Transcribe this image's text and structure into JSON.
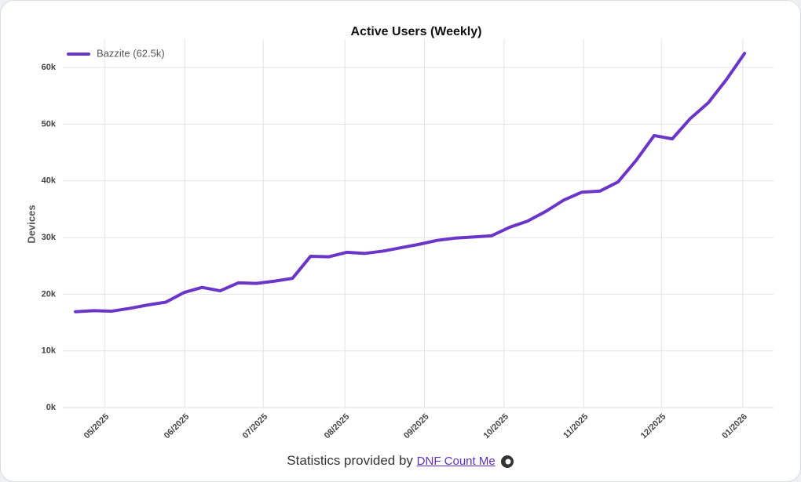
{
  "chart_data": {
    "type": "line",
    "title": "Active Users (Weekly)",
    "y_label": "Devices",
    "categories": [
      null,
      null,
      null,
      null,
      null,
      null,
      null,
      null,
      null,
      null,
      null,
      null,
      null,
      null,
      null,
      null,
      null,
      null,
      null,
      null,
      null,
      null,
      null,
      null,
      null,
      null,
      null,
      null,
      null,
      null,
      null,
      null,
      null,
      null,
      null,
      null,
      null,
      null
    ],
    "series": [
      {
        "name": "Bazzite (62.5k)",
        "color": "#6a35c8",
        "values": [
          16900,
          17100,
          17000,
          17500,
          18100,
          18600,
          20300,
          21200,
          20600,
          22000,
          21900,
          22300,
          22800,
          26700,
          26600,
          27400,
          27200,
          27600,
          28200,
          28800,
          29500,
          29900,
          30100,
          30300,
          31800,
          32900,
          34600,
          36600,
          38000,
          38200,
          39800,
          43600,
          48000,
          47400,
          51000,
          53800,
          57900,
          62500
        ]
      }
    ],
    "xlim": [
      -0.7,
      38.6
    ],
    "xticks": [
      {
        "value": 1.61,
        "label": "05/2025"
      },
      {
        "value": 6.04,
        "label": "06/2025"
      },
      {
        "value": 10.38,
        "label": "07/2025"
      },
      {
        "value": 14.9,
        "label": "08/2025"
      },
      {
        "value": 19.3,
        "label": "09/2025"
      },
      {
        "value": 23.7,
        "label": "10/2025"
      },
      {
        "value": 28.1,
        "label": "11/2025"
      },
      {
        "value": 32.4,
        "label": "12/2025"
      },
      {
        "value": 36.9,
        "label": "01/2026"
      }
    ],
    "ylim": [
      0,
      65000
    ],
    "yticks": [
      {
        "value": 0,
        "label": "0k"
      },
      {
        "value": 10000,
        "label": "10k"
      },
      {
        "value": 20000,
        "label": "20k"
      },
      {
        "value": 30000,
        "label": "30k"
      },
      {
        "value": 40000,
        "label": "40k"
      },
      {
        "value": 50000,
        "label": "50k"
      },
      {
        "value": 60000,
        "label": "60k"
      }
    ],
    "grid": true,
    "legend": "top-left"
  },
  "footer": {
    "text": "Statistics provided by",
    "link": "DNF Count Me"
  }
}
